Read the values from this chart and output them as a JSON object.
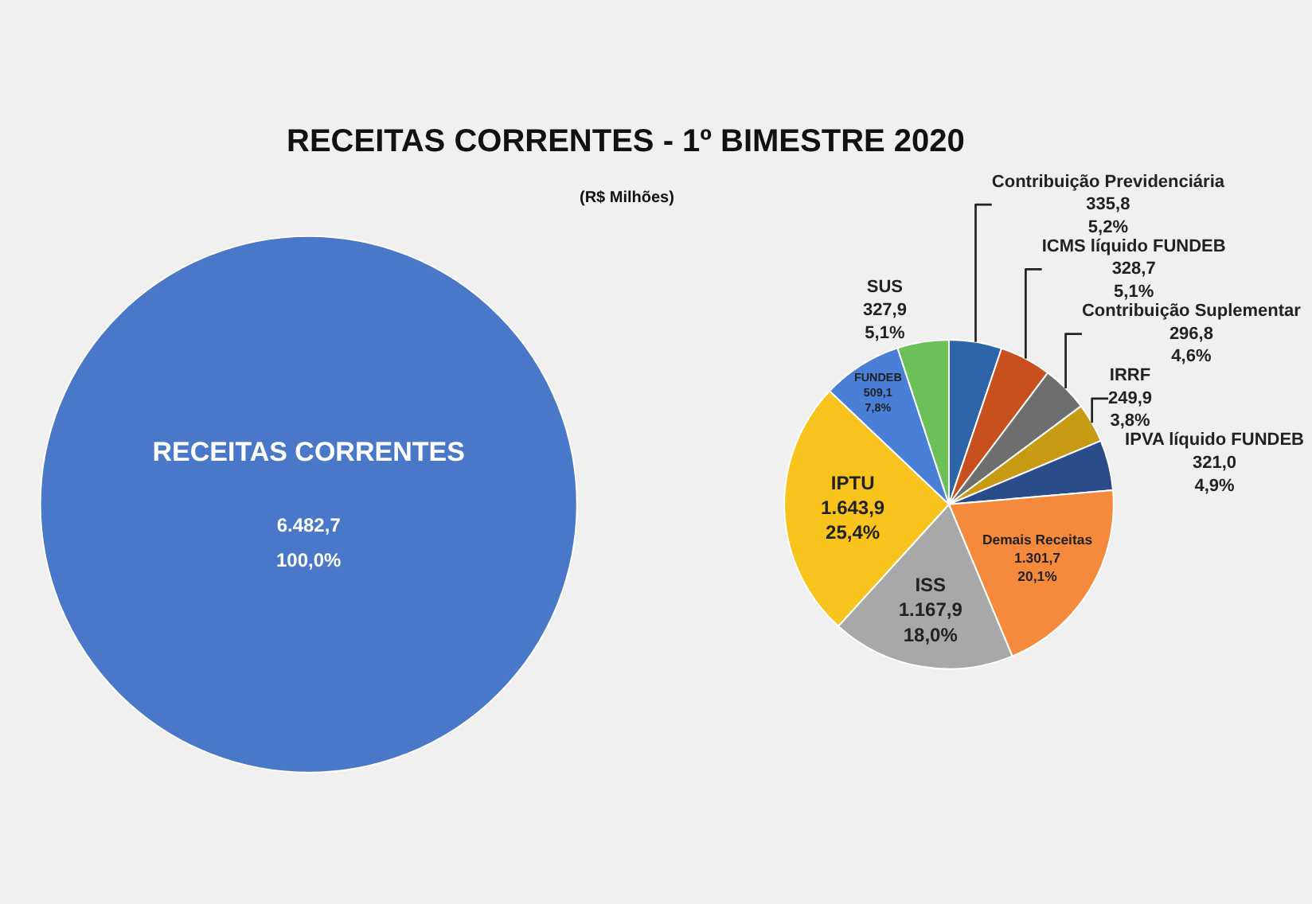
{
  "chart_data": [
    {
      "type": "pie",
      "title": "RECEITAS CORRENTES - 1º BIMESTRE 2020",
      "subtitle": "(R$ Milhões)",
      "categories": [
        "RECEITAS CORRENTES"
      ],
      "values": [
        6482.7
      ],
      "colors": [
        "#4a78c8"
      ],
      "value_labels": [
        "6.482,7\n100,0%"
      ],
      "legend": false
    },
    {
      "type": "pie",
      "categories": [
        "Contribuição Previdenciária",
        "ICMS líquido FUNDEB",
        "Contribuição Suplementar",
        "IRRF",
        "IPVA líquido FUNDEB",
        "Demais Receitas",
        "ISS",
        "IPTU",
        "FUNDEB",
        "SUS"
      ],
      "values": [
        335.8,
        328.7,
        296.8,
        249.9,
        321.0,
        1301.7,
        1167.9,
        1643.9,
        509.1,
        327.9
      ],
      "colors": [
        "#2e64a8",
        "#c8501e",
        "#6e6e6e",
        "#c79a14",
        "#2a4d8a",
        "#f58a3c",
        "#a8a8a8",
        "#f7c31c",
        "#4a7fd8",
        "#6cc05a"
      ],
      "value_labels": [
        "335,8\n5,2%",
        "328,7\n5,1%",
        "296,8\n4,6%",
        "249,9\n3,8%",
        "321,0\n4,9%",
        "1.301,7\n20,1%",
        "1.167,9\n18,0%",
        "1.643,9\n25,4%",
        "509,1\n7,8%",
        "327,9\n5,1%"
      ],
      "legend": false
    }
  ]
}
